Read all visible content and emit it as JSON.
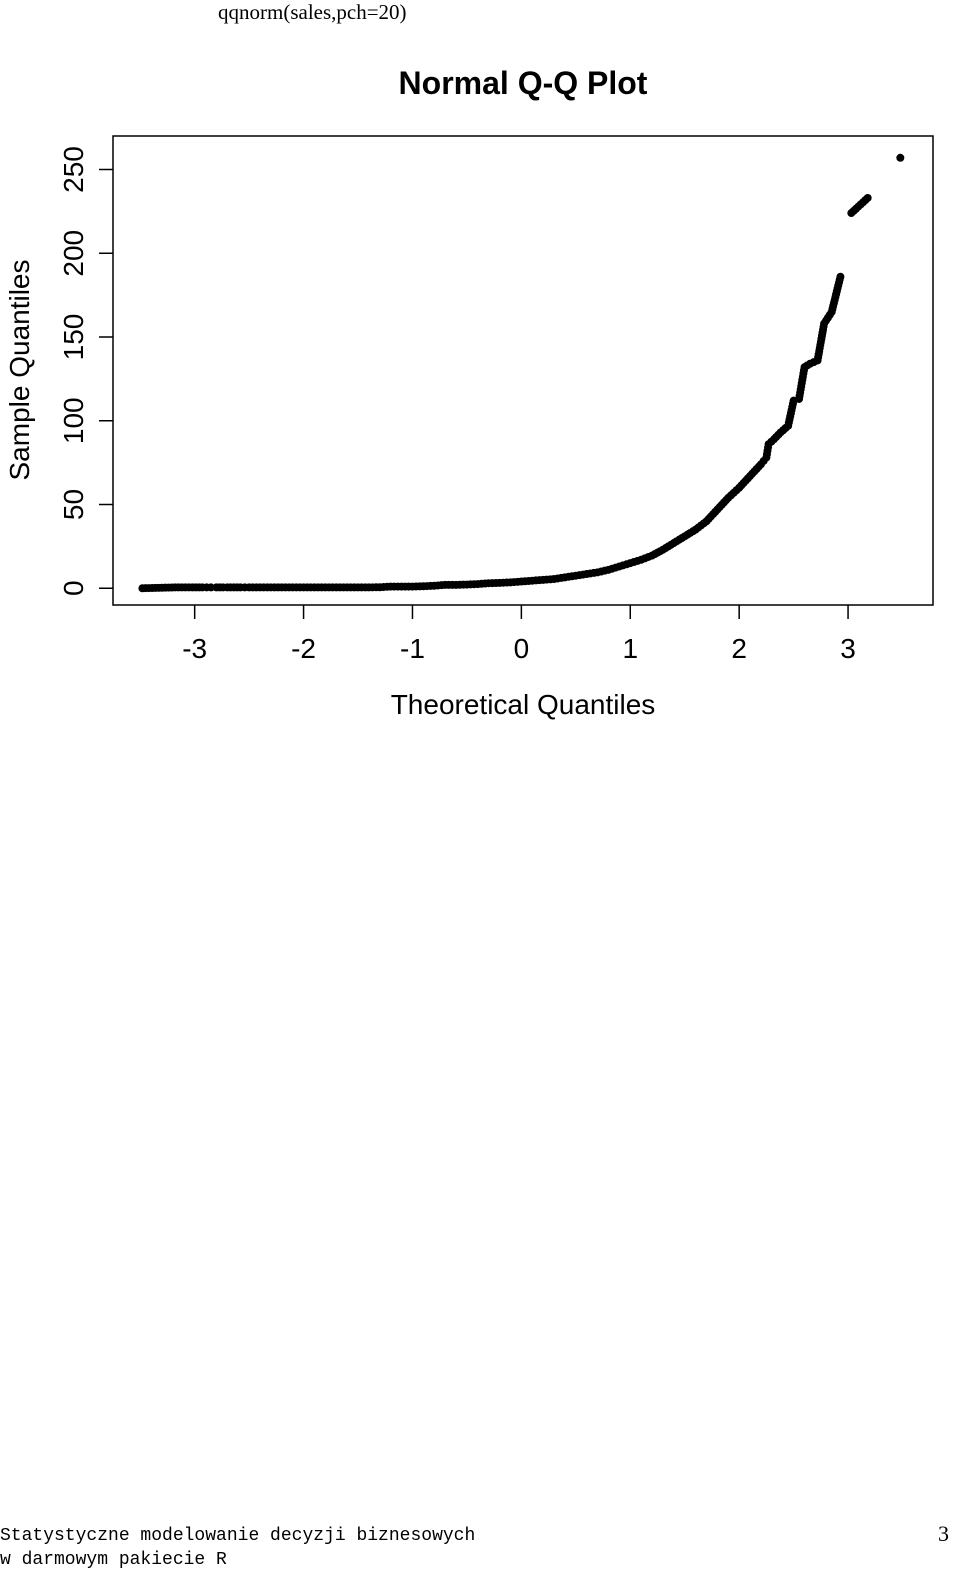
{
  "code_caption": "qqnorm(sales,pch=20)",
  "chart_data": {
    "type": "scatter",
    "title": "Normal Q-Q Plot",
    "xlabel": "Theoretical Quantiles",
    "ylabel": "Sample Quantiles",
    "xlim": [
      -3.75,
      3.78
    ],
    "ylim": [
      -10,
      270
    ],
    "x_ticks": [
      -3,
      -2,
      -1,
      0,
      1,
      2,
      3
    ],
    "x_tick_labels": [
      "-3",
      "-2",
      "-1",
      "0",
      "1",
      "2",
      "3"
    ],
    "y_ticks": [
      0,
      50,
      100,
      150,
      200,
      250
    ],
    "y_tick_labels": [
      "0",
      "50",
      "100",
      "150",
      "200",
      "250"
    ],
    "grid": false,
    "point_color": "#000000",
    "points": [
      [
        -3.48,
        0
      ],
      [
        -3.18,
        0.5
      ],
      [
        -3.02,
        0.5
      ],
      [
        -2.93,
        0.5
      ],
      [
        -2.85,
        0.5
      ],
      [
        -2.8,
        0.5
      ],
      [
        -2.74,
        0.5
      ],
      [
        -2.7,
        0.5
      ],
      [
        -2.64,
        0.5
      ],
      [
        -2.58,
        0.5
      ],
      [
        -2.5,
        0.5
      ],
      [
        -2.4,
        0.5
      ],
      [
        -2.3,
        0.5
      ],
      [
        -2.2,
        0.5
      ],
      [
        -2.1,
        0.5
      ],
      [
        -2.0,
        0.5
      ],
      [
        -1.9,
        0.5
      ],
      [
        -1.8,
        0.5
      ],
      [
        -1.7,
        0.5
      ],
      [
        -1.6,
        0.5
      ],
      [
        -1.5,
        0.5
      ],
      [
        -1.4,
        0.5
      ],
      [
        -1.3,
        0.6
      ],
      [
        -1.2,
        1
      ],
      [
        -1.1,
        1
      ],
      [
        -1.0,
        1
      ],
      [
        -0.9,
        1.2
      ],
      [
        -0.8,
        1.5
      ],
      [
        -0.7,
        2
      ],
      [
        -0.6,
        2
      ],
      [
        -0.5,
        2.2
      ],
      [
        -0.4,
        2.5
      ],
      [
        -0.3,
        3
      ],
      [
        -0.2,
        3.2
      ],
      [
        -0.1,
        3.5
      ],
      [
        0.0,
        4
      ],
      [
        0.1,
        4.5
      ],
      [
        0.2,
        5
      ],
      [
        0.3,
        5.5
      ],
      [
        0.4,
        6.5
      ],
      [
        0.5,
        7.5
      ],
      [
        0.6,
        8.5
      ],
      [
        0.7,
        9.5
      ],
      [
        0.8,
        11
      ],
      [
        0.9,
        13
      ],
      [
        1.0,
        15
      ],
      [
        1.1,
        17
      ],
      [
        1.2,
        19.5
      ],
      [
        1.3,
        23
      ],
      [
        1.4,
        27
      ],
      [
        1.5,
        31
      ],
      [
        1.6,
        35
      ],
      [
        1.7,
        40
      ],
      [
        1.8,
        47
      ],
      [
        1.9,
        54
      ],
      [
        2.0,
        60
      ],
      [
        2.1,
        67
      ],
      [
        2.2,
        74
      ],
      [
        2.25,
        78
      ],
      [
        2.27,
        86
      ],
      [
        2.32,
        89
      ],
      [
        2.38,
        93
      ],
      [
        2.45,
        97
      ],
      [
        2.5,
        112
      ],
      [
        2.55,
        113
      ],
      [
        2.6,
        132
      ],
      [
        2.65,
        134
      ],
      [
        2.72,
        136
      ],
      [
        2.78,
        158
      ],
      [
        2.85,
        165
      ],
      [
        2.93,
        186
      ],
      [
        3.03,
        224
      ],
      [
        3.18,
        233
      ],
      [
        3.48,
        257
      ]
    ]
  },
  "footer": {
    "line1": "Statystyczne modelowanie decyzji biznesowych",
    "line2": "w darmowym pakiecie R",
    "page_number": "3"
  }
}
